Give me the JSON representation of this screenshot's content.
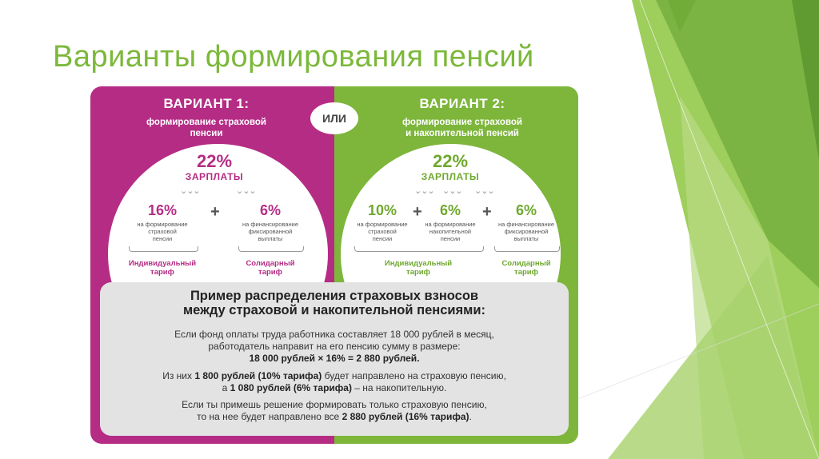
{
  "slide": {
    "title": "Варианты формирования пенсий",
    "colors": {
      "magenta": "#b52c85",
      "green": "#7db63b",
      "title": "#7cb83a"
    }
  },
  "option1": {
    "heading": "ВАРИАНТ 1:",
    "subtitle_line1": "формирование страховой",
    "subtitle_line2": "пенсии",
    "total_pct": "22%",
    "total_label": "ЗАРПЛАТЫ",
    "part1_pct": "16%",
    "part1_caption_l1": "на формирование",
    "part1_caption_l2": "страховой",
    "part1_caption_l3": "пенсии",
    "part2_pct": "6%",
    "part2_caption_l1": "на финансирование",
    "part2_caption_l2": "фиксированной",
    "part2_caption_l3": "выплаты",
    "tarif1_l1": "Индивидуальный",
    "tarif1_l2": "тариф",
    "tarif2_l1": "Солидарный",
    "tarif2_l2": "тариф"
  },
  "or_label": "ИЛИ",
  "option2": {
    "heading": "ВАРИАНТ 2:",
    "subtitle_line1": "формирование страховой",
    "subtitle_line2": "и накопительной пенсий",
    "total_pct": "22%",
    "total_label": "ЗАРПЛАТЫ",
    "part1_pct": "10%",
    "part1_caption_l1": "на формирование",
    "part1_caption_l2": "страховой",
    "part1_caption_l3": "пенсии",
    "part2_pct": "6%",
    "part2_caption_l1": "на формирование",
    "part2_caption_l2": "накопительной",
    "part2_caption_l3": "пенсии",
    "part3_pct": "6%",
    "part3_caption_l1": "на финансирование",
    "part3_caption_l2": "фиксированной",
    "part3_caption_l3": "выплаты",
    "tarif1_l1": "Индивидуальный",
    "tarif1_l2": "тариф",
    "tarif2_l1": "Солидарный",
    "tarif2_l2": "тариф"
  },
  "plus": "+",
  "arrow_glyph": "⌄⌄⌄",
  "example": {
    "title_l1": "Пример распределения страховых взносов",
    "title_l2": "между страховой и накопительной пенсиями:",
    "p1_l1": "Если фонд оплаты труда работника составляет 18 000 рублей в месяц,",
    "p1_l2": "работодатель направит на его пенсию сумму в размере:",
    "p1_l3": "18 000 рублей × 16% = 2 880 рублей.",
    "p2_l1_a": "Из них ",
    "p2_l1_b": "1 800 рублей (10% тарифа)",
    "p2_l1_c": " будет направлено на страховую пенсию,",
    "p2_l2_a": "а ",
    "p2_l2_b": "1 080 рублей (6% тарифа)",
    "p2_l2_c": " – на накопительную.",
    "p3_l1": "Если ты примешь решение формировать только страховую пенсию,",
    "p3_l2_a": "то на нее будет направлено все ",
    "p3_l2_b": "2 880 рублей (16% тарифа)",
    "p3_l2_c": "."
  }
}
